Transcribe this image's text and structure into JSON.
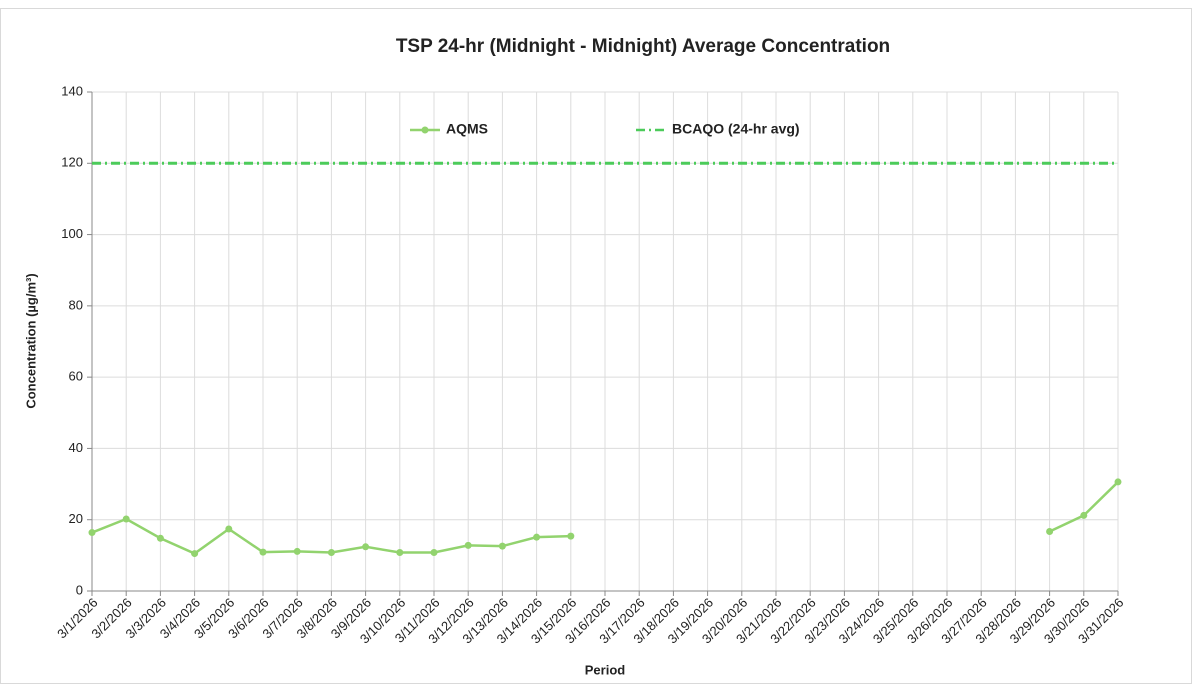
{
  "chart_data": {
    "type": "line",
    "title": "TSP 24-hr (Midnight - Midnight) Average Concentration",
    "x_label": "Period",
    "y_label": "Concentration (µg/m³)",
    "categories": [
      "3/1/2026",
      "3/2/2026",
      "3/3/2026",
      "3/4/2026",
      "3/5/2026",
      "3/6/2026",
      "3/7/2026",
      "3/8/2026",
      "3/9/2026",
      "3/10/2026",
      "3/11/2026",
      "3/12/2026",
      "3/13/2026",
      "3/14/2026",
      "3/15/2026",
      "3/16/2026",
      "3/17/2026",
      "3/18/2026",
      "3/19/2026",
      "3/20/2026",
      "3/21/2026",
      "3/22/2026",
      "3/23/2026",
      "3/24/2026",
      "3/25/2026",
      "3/26/2026",
      "3/27/2026",
      "3/28/2026",
      "3/29/2026",
      "3/30/2026",
      "3/31/2026"
    ],
    "series": [
      {
        "name": "AQMS",
        "color": "#92d36e",
        "style": "solid-marker",
        "values": [
          16.4,
          20.2,
          14.8,
          10.5,
          17.4,
          10.9,
          11.1,
          10.8,
          12.4,
          10.8,
          10.8,
          12.8,
          12.6,
          15.1,
          15.4,
          null,
          null,
          null,
          null,
          null,
          null,
          null,
          null,
          null,
          null,
          null,
          null,
          null,
          16.7,
          21.2,
          30.6
        ]
      },
      {
        "name": "BCAQO (24-hr avg)",
        "color": "#4ccb5a",
        "style": "dash-dot",
        "values": [
          120,
          120,
          120,
          120,
          120,
          120,
          120,
          120,
          120,
          120,
          120,
          120,
          120,
          120,
          120,
          120,
          120,
          120,
          120,
          120,
          120,
          120,
          120,
          120,
          120,
          120,
          120,
          120,
          120,
          120,
          120
        ]
      }
    ],
    "ylim": [
      0,
      140
    ],
    "yticks": [
      0,
      20,
      40,
      60,
      80,
      100,
      120,
      140
    ],
    "grid": true,
    "legend": "top"
  }
}
